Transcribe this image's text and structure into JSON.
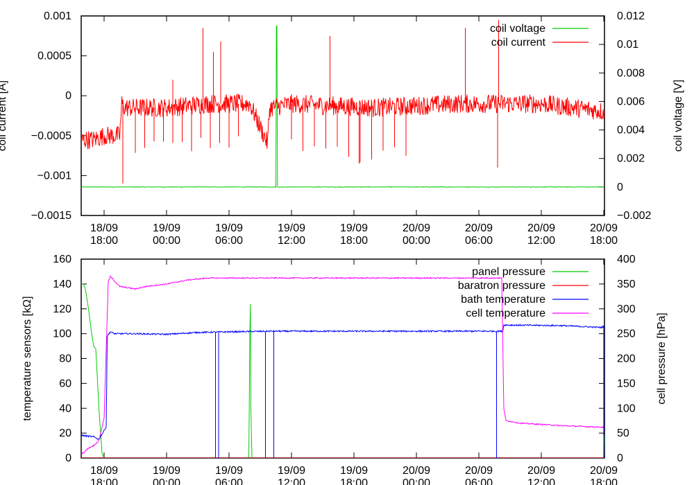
{
  "chart_data": [
    {
      "type": "line",
      "xlabel": "",
      "ylabel": "coil current [A]",
      "y2label": "coil voltage [V]",
      "ylim": [
        -0.0015,
        0.001
      ],
      "y2lim": [
        -0.002,
        0.012
      ],
      "yticks": [
        "0.001",
        "0.0005",
        "0",
        "−0.0005",
        "−0.001",
        "−0.0015"
      ],
      "y2ticks": [
        "0.012",
        "0.01",
        "0.008",
        "0.006",
        "0.004",
        "0.002",
        "0",
        "−0.002"
      ],
      "xticks": [
        {
          "date": "18/09",
          "time": "18:00"
        },
        {
          "date": "19/09",
          "time": "00:00"
        },
        {
          "date": "19/09",
          "time": "06:00"
        },
        {
          "date": "19/09",
          "time": "12:00"
        },
        {
          "date": "19/09",
          "time": "18:00"
        },
        {
          "date": "20/09",
          "time": "00:00"
        },
        {
          "date": "20/09",
          "time": "06:00"
        },
        {
          "date": "20/09",
          "time": "12:00"
        },
        {
          "date": "20/09",
          "time": "18:00"
        }
      ],
      "legend_position": "top-right",
      "series": [
        {
          "name": "coil voltage",
          "color": "#00cc00",
          "axis": "y2",
          "x_hours": [
            16,
            34.5,
            34.55,
            34.6,
            34.65,
            66.2
          ],
          "values": [
            0.0,
            0.0,
            0.0113,
            0.0113,
            0.0,
            0.0
          ]
        },
        {
          "name": "coil current",
          "color": "#ff0000",
          "axis": "y1",
          "x_hours": [
            16,
            17,
            18,
            19.5,
            19.7,
            20,
            24,
            28,
            32,
            33.7,
            33.9,
            36,
            44,
            52,
            60,
            66.2
          ],
          "values": [
            -0.00055,
            -0.00055,
            -0.0005,
            -0.0005,
            -0.0001,
            -0.00015,
            -0.00015,
            -0.0001,
            -0.0001,
            -0.0006,
            -0.00015,
            -0.0001,
            -0.00015,
            -0.0001,
            -0.0001,
            -0.0002
          ],
          "spikes": [
            {
              "x_hours": 19.8,
              "value": -0.0011
            },
            {
              "x_hours": 24.6,
              "value": 0.0002
            },
            {
              "x_hours": 27.5,
              "value": 0.00085
            },
            {
              "x_hours": 28.5,
              "value": 0.00055
            },
            {
              "x_hours": 29.2,
              "value": 0.00068
            },
            {
              "x_hours": 39.7,
              "value": 0.00075
            },
            {
              "x_hours": 42.5,
              "value": -0.00085
            },
            {
              "x_hours": 52.7,
              "value": 0.00085
            },
            {
              "x_hours": 55.9,
              "value": 0.00095
            },
            {
              "x_hours": 55.8,
              "value": -0.0009
            }
          ]
        }
      ]
    },
    {
      "type": "line",
      "xlabel": "",
      "ylabel": "temperature sensors [kΩ]",
      "y2label": "cell pressure [hPa]",
      "ylim": [
        0,
        160
      ],
      "y2lim": [
        0,
        400
      ],
      "yticks": [
        "160",
        "140",
        "120",
        "100",
        "80",
        "60",
        "40",
        "20",
        "0"
      ],
      "y2ticks": [
        "400",
        "350",
        "300",
        "250",
        "200",
        "150",
        "100",
        "50",
        "0"
      ],
      "xticks": [
        {
          "date": "18/09",
          "time": "18:00"
        },
        {
          "date": "19/09",
          "time": "00:00"
        },
        {
          "date": "19/09",
          "time": "06:00"
        },
        {
          "date": "19/09",
          "time": "12:00"
        },
        {
          "date": "19/09",
          "time": "18:00"
        },
        {
          "date": "20/09",
          "time": "00:00"
        },
        {
          "date": "20/09",
          "time": "06:00"
        },
        {
          "date": "20/09",
          "time": "12:00"
        },
        {
          "date": "20/09",
          "time": "18:00"
        }
      ],
      "legend_position": "top-right",
      "series": [
        {
          "name": "panel pressure",
          "color": "#00cc00",
          "axis": "y2",
          "x_hours": [
            16,
            16.2,
            16.5,
            16.8,
            17.0,
            17.2,
            17.5,
            17.8,
            18.0,
            18.5,
            31.9,
            32.0,
            32.05,
            32.1,
            32.2,
            32.3,
            66.0,
            66.1,
            66.2
          ],
          "values": [
            350,
            340,
            300,
            250,
            225,
            220,
            100,
            10,
            0,
            0,
            0,
            250,
            310,
            100,
            0,
            0,
            0,
            90,
            0
          ]
        },
        {
          "name": "baratron pressure",
          "color": "#ff0000",
          "axis": "y2",
          "x_hours": [
            16,
            66.2
          ],
          "values": [
            0,
            0
          ]
        },
        {
          "name": "bath temperature",
          "color": "#0000ff",
          "axis": "y1",
          "x_hours": [
            16,
            17,
            17.5,
            18.2,
            18.3,
            18.6,
            19,
            21,
            24,
            27,
            30,
            34,
            40,
            46,
            56.3,
            56.4,
            62,
            65.8,
            66.0
          ],
          "values": [
            18,
            17,
            15,
            25,
            98,
            101.5,
            100,
            100,
            99.5,
            101,
            101.5,
            102,
            102,
            102,
            102,
            107,
            106.5,
            105,
            106
          ]
        },
        {
          "name": "cell temperature",
          "color": "#ff00ff",
          "axis": "y2",
          "x_hours": [
            16,
            16.5,
            17,
            17.5,
            18.0,
            18.4,
            18.6,
            19.5,
            21,
            22,
            24,
            26,
            28,
            32,
            40,
            48,
            56.2,
            56.4,
            56.6,
            58,
            62,
            65.8
          ],
          "values": [
            10,
            20,
            25,
            35,
            80,
            355,
            365,
            345,
            340,
            345,
            350,
            358,
            362,
            362,
            362,
            362,
            362,
            100,
            75,
            70,
            65,
            62
          ]
        }
      ],
      "dropouts": [
        {
          "x_hours": 28.7,
          "value": 0
        },
        {
          "x_hours": 29.0,
          "value": 0
        },
        {
          "x_hours": 33.5,
          "value": 0
        },
        {
          "x_hours": 34.3,
          "value": 0
        },
        {
          "x_hours": 55.7,
          "value": 0
        },
        {
          "x_hours": 66.0,
          "value": 0
        }
      ]
    }
  ]
}
